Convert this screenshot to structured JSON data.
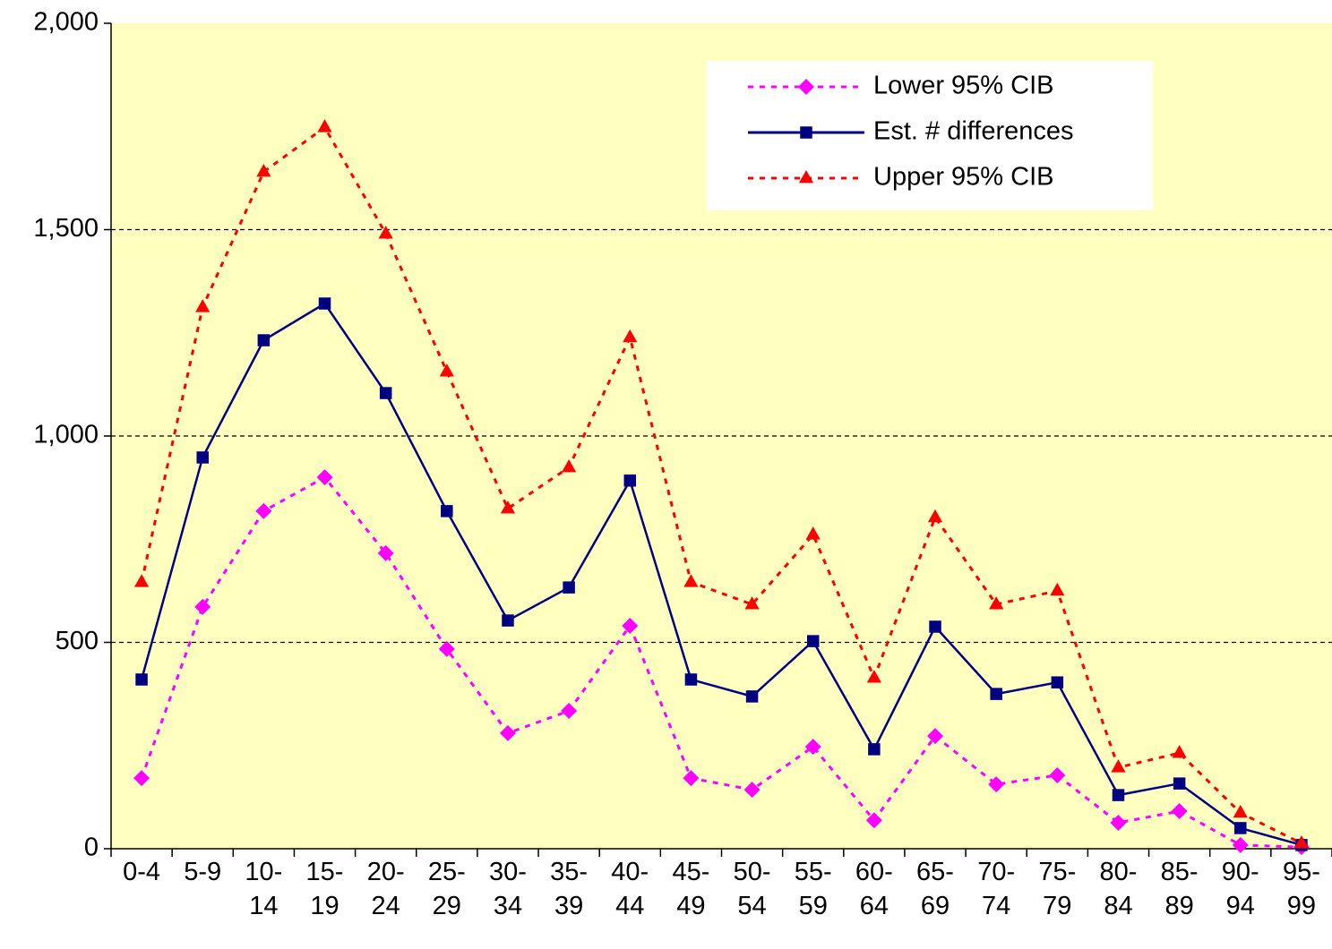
{
  "chart_data": {
    "type": "line",
    "categories": [
      "0-4",
      "5-9",
      "10-14",
      "15-19",
      "20-24",
      "25-29",
      "30-34",
      "35-39",
      "40-44",
      "45-49",
      "50-54",
      "55-59",
      "60-64",
      "65-69",
      "70-74",
      "75-79",
      "80-84",
      "85-89",
      "90-94",
      "95-99"
    ],
    "series": [
      {
        "name": "Lower 95% CIB",
        "color": "#ff00ff",
        "marker": "diamond",
        "line_style": "dotted",
        "values": [
          171,
          586,
          818,
          900,
          716,
          484,
          280,
          334,
          540,
          171,
          143,
          247,
          69,
          273,
          156,
          178,
          63,
          91,
          9,
          4
        ]
      },
      {
        "name": "Est. # differences",
        "color": "#000080",
        "marker": "square",
        "line_style": "solid",
        "values": [
          410,
          948,
          1232,
          1321,
          1104,
          818,
          553,
          633,
          892,
          410,
          369,
          503,
          241,
          538,
          375,
          403,
          130,
          158,
          50,
          9
        ]
      },
      {
        "name": "Upper 95% CIB",
        "color": "#ff0000",
        "marker": "triangle",
        "line_style": "dotted",
        "values": [
          646,
          1312,
          1640,
          1748,
          1490,
          1156,
          824,
          924,
          1239,
          646,
          592,
          761,
          414,
          803,
          592,
          625,
          197,
          232,
          87,
          13
        ]
      }
    ],
    "ylim": [
      0,
      2000
    ],
    "yticks": [
      0,
      500,
      {
        "value": 1000,
        "label": "1,000"
      },
      {
        "value": 1500,
        "label": "1,500"
      },
      {
        "value": 2000,
        "label": "2,000"
      }
    ],
    "grid": true,
    "background": "#ffffc0",
    "legend": "top-right"
  }
}
